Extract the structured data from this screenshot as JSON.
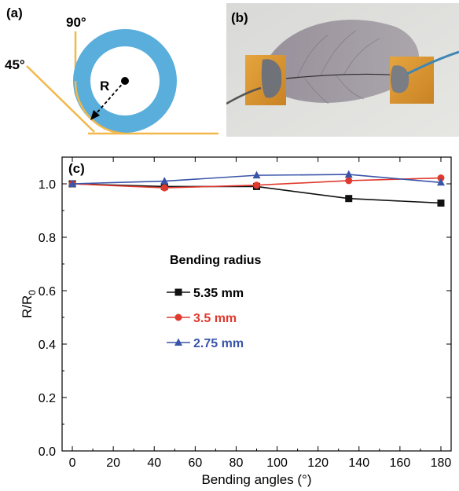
{
  "panel_a": {
    "label": "(a)",
    "angle_90": "90°",
    "angle_45": "45°",
    "radius_label": "R",
    "ring_color": "#5aaedc",
    "line_color": "#f2b84b"
  },
  "panel_b": {
    "label": "(b)"
  },
  "chart_data": {
    "type": "line",
    "panel_label": "(c)",
    "xlabel": "Bending angles (°)",
    "ylabel_main": "R/R",
    "ylabel_sub": "0",
    "xlim": [
      -5,
      185
    ],
    "ylim": [
      0.0,
      1.1
    ],
    "xticks": [
      0,
      20,
      40,
      60,
      80,
      100,
      120,
      140,
      160,
      180
    ],
    "yticks": [
      0.0,
      0.2,
      0.4,
      0.6,
      0.8,
      1.0
    ],
    "ytick_labels": [
      "0.0",
      "0.2",
      "0.4",
      "0.6",
      "0.8",
      "1.0"
    ],
    "legend_title": "Bending radius",
    "legend_placement": "center",
    "series": [
      {
        "name": "5.35 mm",
        "color": "#111111",
        "marker": "square",
        "x": [
          0,
          45,
          90,
          135,
          180
        ],
        "y": [
          1.0,
          0.99,
          0.99,
          0.945,
          0.928
        ]
      },
      {
        "name": "3.5 mm",
        "color": "#e03a2f",
        "marker": "circle",
        "x": [
          0,
          45,
          90,
          135,
          180
        ],
        "y": [
          1.0,
          0.985,
          0.995,
          1.012,
          1.022
        ]
      },
      {
        "name": "2.75 mm",
        "color": "#3a55a8",
        "marker": "triangle",
        "x": [
          0,
          45,
          90,
          135,
          180
        ],
        "y": [
          1.0,
          1.01,
          1.032,
          1.035,
          1.005
        ]
      }
    ]
  }
}
